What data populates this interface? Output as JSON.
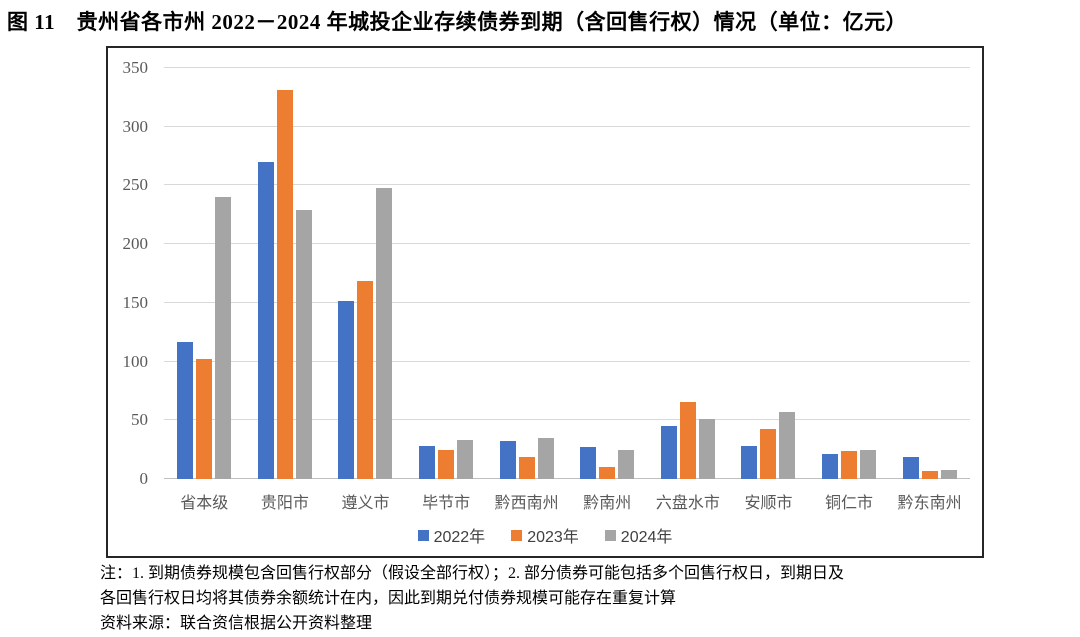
{
  "title": "图 11　贵州省各市州 2022－2024 年城投企业存续债券到期（含回售行权）情况（单位：亿元）",
  "chart_data": {
    "type": "bar",
    "categories": [
      "省本级",
      "贵阳市",
      "遵义市",
      "毕节市",
      "黔西南州",
      "黔南州",
      "六盘水市",
      "安顺市",
      "铜仁市",
      "黔东南州"
    ],
    "series": [
      {
        "name": "2022年",
        "color": "#4472C4",
        "values": [
          117,
          270,
          152,
          28,
          32,
          27,
          45,
          28,
          21,
          19
        ]
      },
      {
        "name": "2023年",
        "color": "#ED7D31",
        "values": [
          102,
          331,
          169,
          25,
          19,
          10,
          66,
          43,
          24,
          7
        ]
      },
      {
        "name": "2024年",
        "color": "#A5A5A5",
        "values": [
          240,
          229,
          248,
          33,
          35,
          25,
          51,
          57,
          25,
          8
        ]
      }
    ],
    "unit": "亿元",
    "ylim": [
      0,
      350
    ],
    "ytick_step": 50,
    "yticks": [
      0,
      50,
      100,
      150,
      200,
      250,
      300,
      350
    ],
    "grid": true,
    "legend_position": "bottom"
  },
  "notes": {
    "line1": "注：1. 到期债券规模包含回售行权部分（假设全部行权）；2. 部分债券可能包括多个回售行权日，到期日及",
    "line2": "各回售行权日均将其债券余额统计在内，因此到期兑付债券规模可能存在重复计算",
    "source": "资料来源：联合资信根据公开资料整理"
  }
}
